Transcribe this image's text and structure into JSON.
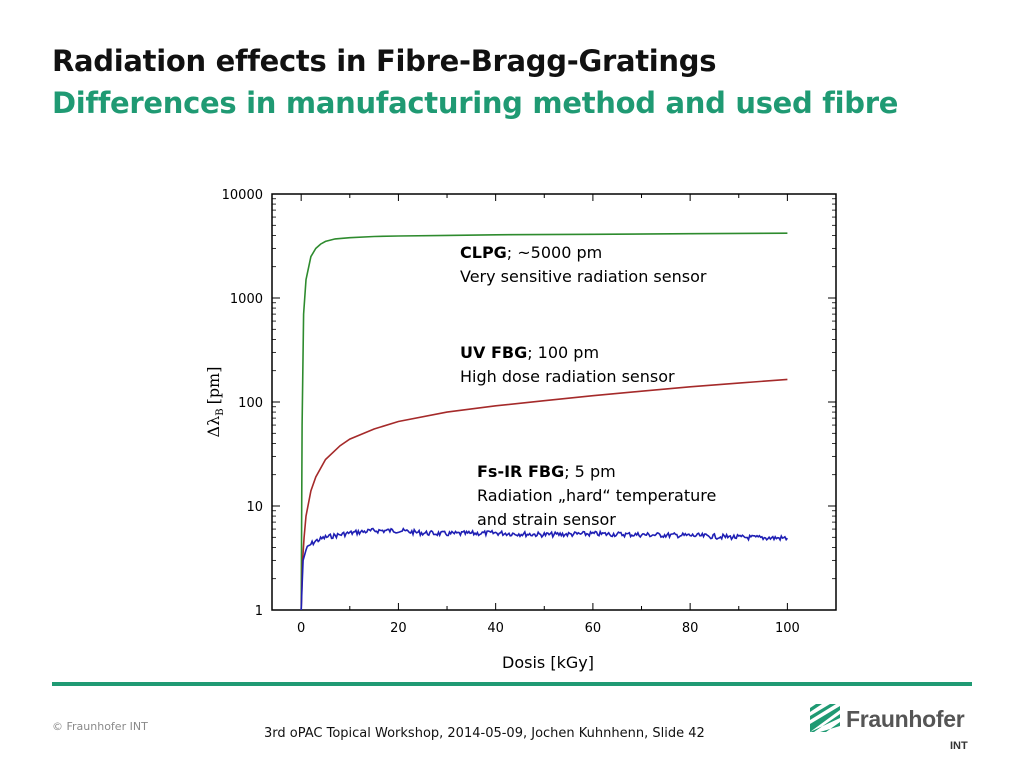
{
  "slide": {
    "title": "Radiation effects in Fibre-Bragg-Gratings",
    "subtitle": "Differences in manufacturing method and used fibre",
    "copyright": "© Fraunhofer INT",
    "footer": "3rd oPAC Topical Workshop, 2014-05-09, Jochen Kuhnhenn, Slide 42",
    "logo_name": "Fraunhofer",
    "logo_sub": "INT"
  },
  "colors": {
    "accent": "#1f9a73",
    "clpg": "#2e8b2e",
    "uv_fbg": "#a52a2a",
    "fs_ir_fbg": "#1f1fb4"
  },
  "chart_data": {
    "type": "line",
    "xlabel": "Dosis [kGy]",
    "ylabel_main": "Δλ",
    "ylabel_sub": "B",
    "ylabel_unit": "[pm]",
    "xlim": [
      -6,
      110
    ],
    "ylim": [
      1,
      10000
    ],
    "yscale": "log",
    "x_ticks": [
      0,
      20,
      40,
      60,
      80,
      100
    ],
    "y_ticks": [
      1,
      10,
      100,
      1000,
      10000
    ],
    "grid": false,
    "series": [
      {
        "key": "clpg",
        "color": "#2e8b2e",
        "x": [
          0,
          0.2,
          0.5,
          1,
          2,
          3,
          4,
          5,
          7,
          10,
          15,
          20,
          30,
          40,
          60,
          80,
          100
        ],
        "y": [
          1,
          60,
          700,
          1500,
          2500,
          3000,
          3300,
          3500,
          3700,
          3800,
          3900,
          3950,
          4000,
          4050,
          4100,
          4150,
          4200
        ]
      },
      {
        "key": "uv_fbg",
        "color": "#a52a2a",
        "x": [
          0,
          0.3,
          0.6,
          1,
          2,
          3,
          5,
          8,
          10,
          15,
          20,
          30,
          40,
          50,
          60,
          70,
          80,
          90,
          100
        ],
        "y": [
          1,
          3,
          5,
          8,
          14,
          19,
          28,
          38,
          44,
          55,
          65,
          80,
          92,
          103,
          115,
          127,
          140,
          152,
          165
        ]
      },
      {
        "key": "fs_ir_fbg",
        "color": "#1f1fb4",
        "x": [
          0,
          0.4,
          1,
          2,
          3,
          5,
          8,
          10,
          15,
          20,
          25,
          30,
          40,
          50,
          60,
          70,
          80,
          90,
          100
        ],
        "y": [
          1,
          3,
          3.8,
          4.3,
          4.6,
          5,
          5.3,
          5.5,
          5.8,
          5.8,
          5.5,
          5.4,
          5.5,
          5.3,
          5.4,
          5.3,
          5.2,
          5.0,
          4.9
        ]
      }
    ],
    "annotations": [
      {
        "key": "clpg",
        "bold": "CLPG",
        "rest": "; ~5000 pm",
        "line2": "Very sensitive radiation sensor",
        "line3": ""
      },
      {
        "key": "uv_fbg",
        "bold": "UV FBG",
        "rest": "; 100 pm",
        "line2": "High dose radiation sensor",
        "line3": ""
      },
      {
        "key": "fs_ir_fbg",
        "bold": "Fs-IR FBG",
        "rest": "; 5 pm",
        "line2": "Radiation „hard“ temperature",
        "line3": "and strain sensor"
      }
    ]
  }
}
